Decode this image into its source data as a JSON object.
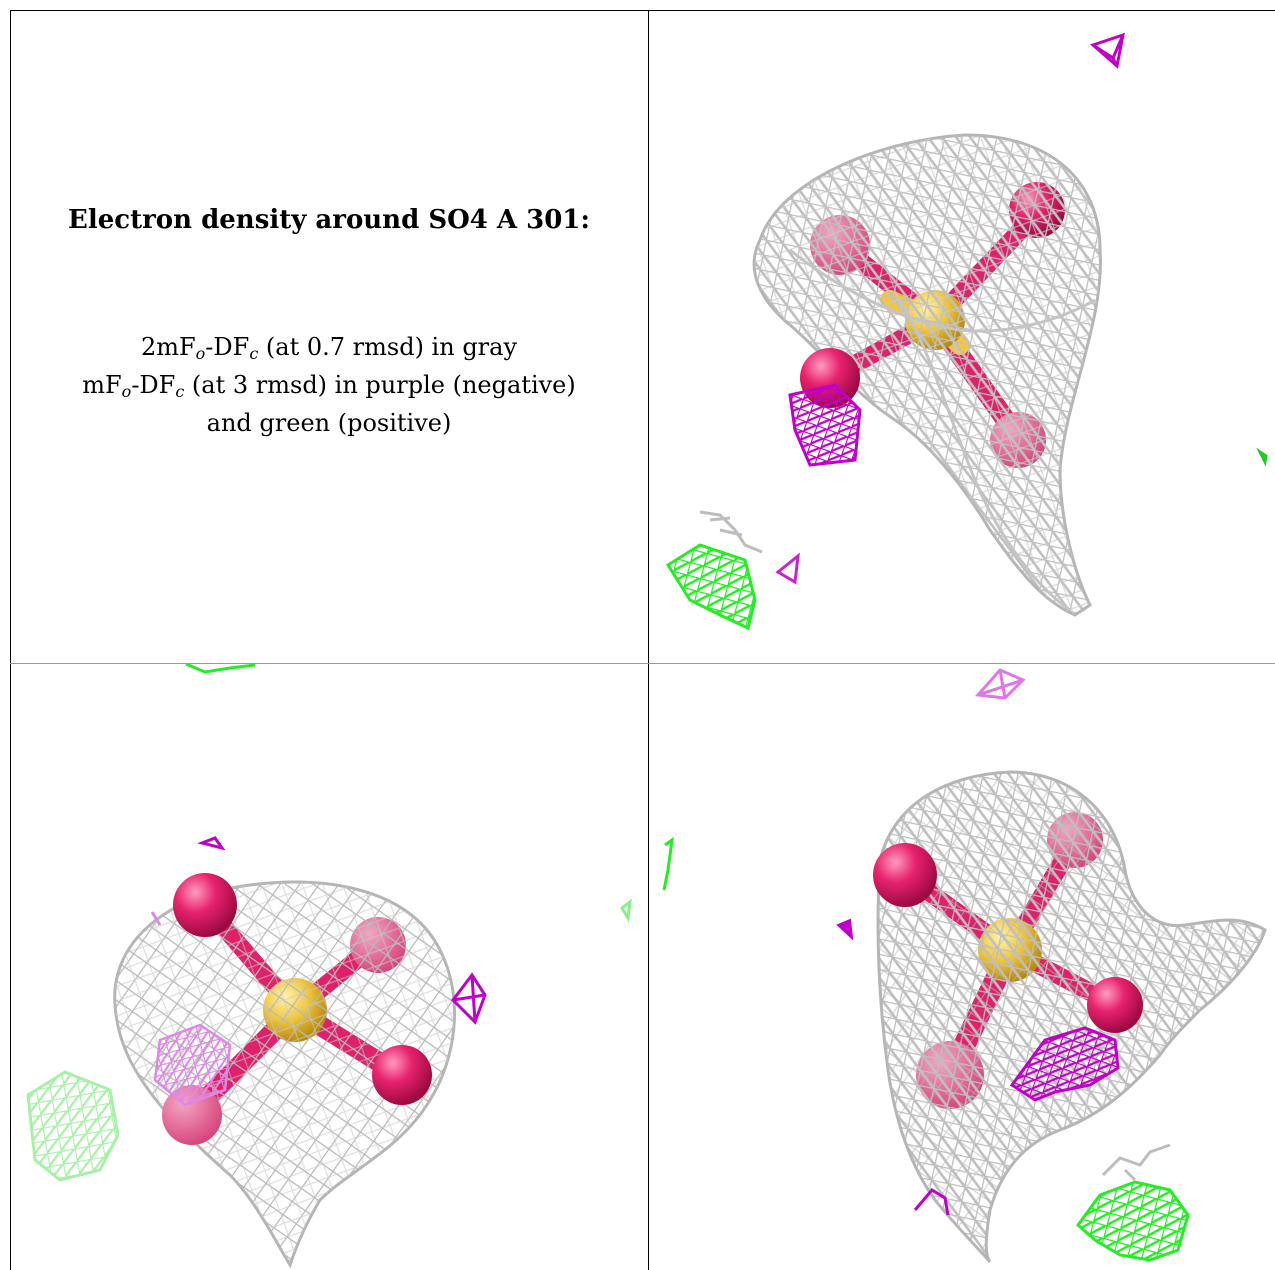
{
  "title": "Electron density around SO4 A 301:",
  "legend": {
    "line1": {
      "base1": "2mF",
      "sub1": "o",
      "mid": "-DF",
      "sub2": "c",
      "rest": " (at 0.7 rmsd) in gray"
    },
    "line2": {
      "base1": "mF",
      "sub1": "o",
      "mid": "-DF",
      "sub2": "c",
      "rest": " (at 3 rmsd) in purple (negative)"
    },
    "line3": "and green (positive)"
  },
  "colors": {
    "mesh_2fofc": "#bdbdbd",
    "mesh_negative": "#cc00cc",
    "mesh_positive": "#22ee22",
    "oxygen": "#e0206a",
    "sulfur": "#f0c83c"
  }
}
